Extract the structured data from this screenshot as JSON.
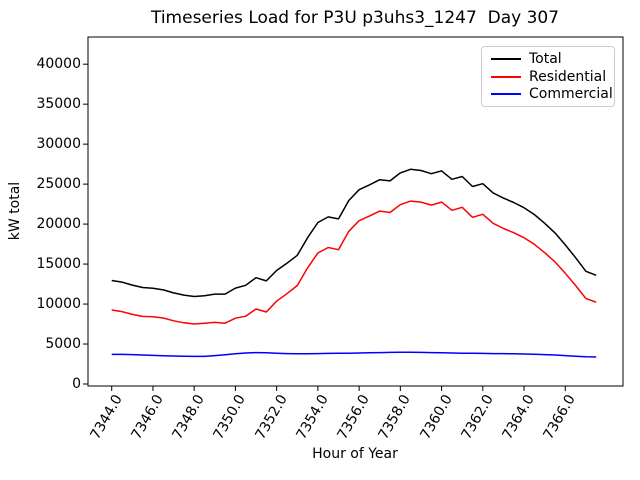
{
  "chart_data": {
    "type": "line",
    "title": "Timeseries Load for P3U p3uhs3_1247  Day 307",
    "xlabel": "Hour of Year",
    "ylabel": "kW total",
    "grid": false,
    "legend_position": "upper right",
    "xlim": [
      7342.85,
      7368.8
    ],
    "ylim": [
      -250,
      43400
    ],
    "xticks": [
      7344,
      7346,
      7348,
      7350,
      7352,
      7354,
      7356,
      7358,
      7360,
      7362,
      7364,
      7366
    ],
    "xtick_labels": [
      "7344.0",
      "7346.0",
      "7348.0",
      "7350.0",
      "7352.0",
      "7354.0",
      "7356.0",
      "7358.0",
      "7360.0",
      "7362.0",
      "7364.0",
      "7366.0"
    ],
    "xtick_rotation_deg": 60,
    "yticks": [
      0,
      5000,
      10000,
      15000,
      20000,
      25000,
      30000,
      35000,
      40000
    ],
    "ytick_labels": [
      "0",
      "5000",
      "10000",
      "15000",
      "20000",
      "25000",
      "30000",
      "35000",
      "40000"
    ],
    "x": [
      7344.0,
      7344.5,
      7345.0,
      7345.5,
      7346.0,
      7346.5,
      7347.0,
      7347.5,
      7348.0,
      7348.5,
      7349.0,
      7349.5,
      7350.0,
      7350.5,
      7351.0,
      7351.5,
      7352.0,
      7352.5,
      7353.0,
      7353.5,
      7354.0,
      7354.5,
      7355.0,
      7355.5,
      7356.0,
      7356.5,
      7357.0,
      7357.5,
      7358.0,
      7358.5,
      7359.0,
      7359.5,
      7360.0,
      7360.5,
      7361.0,
      7361.5,
      7362.0,
      7362.5,
      7363.0,
      7363.5,
      7364.0,
      7364.5,
      7365.0,
      7365.5,
      7366.0,
      7366.5,
      7367.0,
      7367.5
    ],
    "series": [
      {
        "name": "Total",
        "color": "#000000",
        "values": [
          12950,
          12750,
          12375,
          12075,
          11975,
          11775,
          11400,
          11125,
          10950,
          11050,
          11250,
          11250,
          12000,
          12350,
          13300,
          12900,
          14200,
          15100,
          16100,
          18300,
          20200,
          20900,
          20650,
          22950,
          24300,
          24900,
          25550,
          25400,
          26400,
          26850,
          26700,
          26300,
          26650,
          25600,
          25950,
          24700,
          25050,
          23900,
          23250,
          22700,
          22050,
          21200,
          20100,
          18900,
          17400,
          15800,
          14100,
          13600
        ]
      },
      {
        "name": "Residential",
        "color": "#ff0000",
        "values": [
          9250,
          9050,
          8700,
          8450,
          8400,
          8250,
          7900,
          7650,
          7500,
          7600,
          7700,
          7600,
          8225,
          8475,
          9375,
          9000,
          10350,
          11300,
          12325,
          14525,
          16400,
          17075,
          16800,
          19100,
          20425,
          21000,
          21625,
          21450,
          22425,
          22875,
          22750,
          22375,
          22750,
          21725,
          22100,
          20850,
          21225,
          20100,
          19450,
          18925,
          18300,
          17475,
          16425,
          15275,
          13850,
          12325,
          10700,
          10225
        ]
      },
      {
        "name": "Commercial",
        "color": "#0000ff",
        "values": [
          3700,
          3700,
          3675,
          3625,
          3575,
          3525,
          3500,
          3475,
          3450,
          3450,
          3550,
          3650,
          3775,
          3875,
          3925,
          3900,
          3850,
          3800,
          3775,
          3775,
          3800,
          3825,
          3850,
          3850,
          3875,
          3900,
          3925,
          3950,
          3975,
          3975,
          3950,
          3925,
          3900,
          3875,
          3850,
          3850,
          3825,
          3800,
          3800,
          3775,
          3750,
          3725,
          3675,
          3625,
          3550,
          3475,
          3400,
          3375
        ]
      }
    ]
  }
}
